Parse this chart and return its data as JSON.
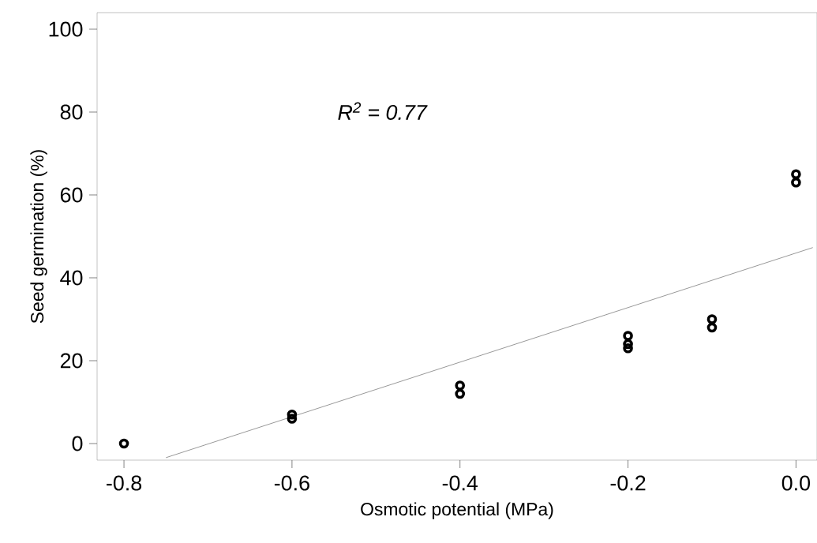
{
  "chart_data": {
    "type": "scatter",
    "xlabel": "Osmotic potential (MPa)",
    "ylabel": "Seed germination (%)",
    "annotations": [
      "R$^{2}$ = 0.77"
    ],
    "series": [
      {
        "color": "#000000",
        "marker": "circle",
        "x": [
          -0.8,
          -0.6,
          -0.6,
          -0.4,
          -0.4,
          -0.2,
          -0.2,
          -0.2,
          -0.1,
          -0.1,
          0.0,
          0.0
        ],
        "values": [
          0,
          6,
          7,
          12,
          14,
          23,
          24,
          26,
          28,
          30,
          63,
          65
        ]
      },
      {
        "type": "line",
        "color": "#999999",
        "x": [
          -0.75,
          0.02
        ],
        "values": [
          -3.4,
          47.3
        ]
      }
    ],
    "xlim": [
      -0.832,
      0.025
    ],
    "ylim": [
      -4,
      104
    ],
    "xticks": [
      {
        "value": -0.8,
        "label": "-0.8"
      },
      {
        "value": -0.6,
        "label": "-0.6"
      },
      {
        "value": -0.4,
        "label": "-0.4"
      },
      {
        "value": -0.2,
        "label": "-0.2"
      },
      {
        "value": 0.0,
        "label": "0.0"
      }
    ],
    "yticks": [
      0,
      20,
      40,
      60,
      80,
      100
    ]
  }
}
